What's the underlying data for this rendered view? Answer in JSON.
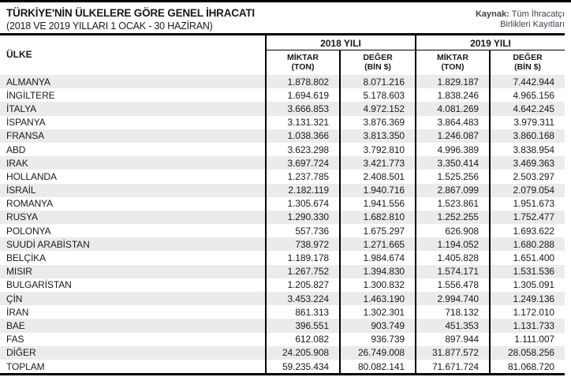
{
  "header": {
    "title": "TÜRKİYE'NİN ÜLKELERE GÖRE GENEL İHRACATI",
    "subtitle": "(2018 VE 2019 YILLARI 1 OCAK - 30 HAZİRAN)",
    "source_label": "Kaynak:",
    "source_line1": "Tüm İhracatçı",
    "source_line2": "Birlikleri Kayıtları"
  },
  "table_labels": {
    "country_column": "ÜLKE",
    "group_2018": "2018 YILI",
    "group_2019": "2019 YILI",
    "sub_miktar_line1": "MİKTAR",
    "sub_miktar_line2": "(TON)",
    "sub_deger_line1": "DEĞER",
    "sub_deger_line2": "(BİN $)"
  },
  "colors": {
    "border": "#000000",
    "text": "#1a1a1a",
    "stripe": "#ebebec",
    "source_text": "#39424e"
  },
  "chart_data": {
    "type": "table",
    "title": "TÜRKİYE'NİN ÜLKELERE GÖRE GENEL İHRACATI (2018 VE 2019 YILLARI 1 OCAK - 30 HAZİRAN)",
    "columns": [
      "ÜLKE",
      "2018 YILI MİKTAR (TON)",
      "2018 YILI DEĞER (BİN $)",
      "2019 YILI MİKTAR (TON)",
      "2019 YILI DEĞER (BİN $)"
    ],
    "rows": [
      [
        "ALMANYA",
        "1.878.802",
        "8.071.216",
        "1.829.187",
        "7.442.944"
      ],
      [
        "İNGİLTERE",
        "1.694.619",
        "5.178.603",
        "1.838.246",
        "4.965.156"
      ],
      [
        "İTALYA",
        "3.666.853",
        "4.972.152",
        "4.081.269",
        "4.642.245"
      ],
      [
        "İSPANYA",
        "3.131.321",
        "3.876.369",
        "3.864.483",
        "3.979.311"
      ],
      [
        "FRANSA",
        "1.038.366",
        "3.813.350",
        "1.246.087",
        "3.860.168"
      ],
      [
        "ABD",
        "3.623.298",
        "3.792.810",
        "4.996.389",
        "3.838.954"
      ],
      [
        "IRAK",
        "3.697.724",
        "3.421.773",
        "3.350.414",
        "3.469.363"
      ],
      [
        "HOLLANDA",
        "1.237.785",
        "2.408.501",
        "1.525.256",
        "2.503.297"
      ],
      [
        "İSRAİL",
        "2.182.119",
        "1.940.716",
        "2.867.099",
        "2.079.054"
      ],
      [
        "ROMANYA",
        "1.305.674",
        "1.941.556",
        "1.523.861",
        "1.951.673"
      ],
      [
        "RUSYA",
        "1.290.330",
        "1.682.810",
        "1.252.255",
        "1.752.477"
      ],
      [
        "POLONYA",
        "557.736",
        "1.675.297",
        "626.908",
        "1.693.622"
      ],
      [
        "SUUDİ ARABİSTAN",
        "738.972",
        "1.271.665",
        "1.194.052",
        "1.680.288"
      ],
      [
        "BELÇİKA",
        "1.189.178",
        "1.984.674",
        "1.405.828",
        "1.651.400"
      ],
      [
        "MISIR",
        "1.267.752",
        "1.394.830",
        "1.574.171",
        "1.531.536"
      ],
      [
        "BULGARİSTAN",
        "1.205.827",
        "1.300.832",
        "1.556.478",
        "1.305.091"
      ],
      [
        "ÇİN",
        "3.453.224",
        "1.463.190",
        "2.994.740",
        "1.249.136"
      ],
      [
        "İRAN",
        "861.313",
        "1.302.301",
        "718.132",
        "1.172.010"
      ],
      [
        "BAE",
        "396.551",
        "903.749",
        "451.353",
        "1.131.733"
      ],
      [
        "FAS",
        "612.082",
        "936.739",
        "897.944",
        "1.111.007"
      ],
      [
        "DİĞER",
        "24.205.908",
        "26.749.008",
        "31.877.572",
        "28.058.256"
      ],
      [
        "TOPLAM",
        "59.235.434",
        "80.082.141",
        "71.671.724",
        "81.068.720"
      ]
    ]
  }
}
